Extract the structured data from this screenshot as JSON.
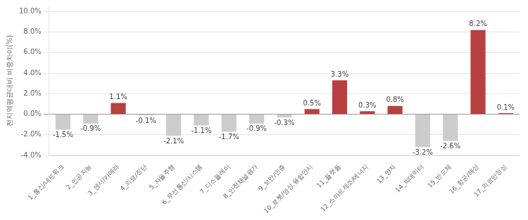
{
  "chart_data": {
    "type": "bar",
    "ylabel": "전지역평균대비 비중차이(%)",
    "categories": [
      "1_통신/네트워크",
      "2_인공지능",
      "3_센서/카메라",
      "4_의료/진단",
      "5_자율주행",
      "6_무선통신/시스템",
      "7_디스플레이",
      "8_안전채널평가",
      "9_보안/인증",
      "10_로봇/영상.융합안시",
      "11_플랫폼",
      "12_스마트제조/에너지",
      "13_양자",
      "14_빅데이터",
      "15_반도체",
      "16_항공/해상",
      "17_의료안정성"
    ],
    "values": [
      -1.5,
      -0.9,
      1.1,
      -0.1,
      -2.1,
      -1.1,
      -1.7,
      -0.9,
      -0.3,
      0.5,
      3.3,
      0.3,
      0.8,
      -3.2,
      -2.6,
      8.2,
      0.1
    ],
    "value_labels": [
      "-1.5%",
      "-0.9%",
      "1.1%",
      "-0.1%",
      "-2.1%",
      "-1.1%",
      "-1.7%",
      "-0.9%",
      "-0.3%",
      "0.5%",
      "3.3%",
      "0.3%",
      "0.8%",
      "-3.2%",
      "-2.6%",
      "8.2%",
      "0.1%"
    ],
    "colors": [
      "#cccccc",
      "#cccccc",
      "#b94040",
      "#cccccc",
      "#cccccc",
      "#cccccc",
      "#cccccc",
      "#cccccc",
      "#cccccc",
      "#b94040",
      "#b94040",
      "#b94040",
      "#b94040",
      "#cccccc",
      "#cccccc",
      "#b94040",
      "#b94040"
    ],
    "data_labels": true,
    "ylim": [
      -4.0,
      10.5
    ],
    "yticks": [
      {
        "value": -4.0,
        "label": "-4.0%"
      },
      {
        "value": -2.0,
        "label": "-2.0%"
      },
      {
        "value": 0.0,
        "label": "0.0%"
      },
      {
        "value": 2.0,
        "label": "2.0%"
      },
      {
        "value": 4.0,
        "label": "4.0%"
      },
      {
        "value": 6.0,
        "label": "6.0%"
      },
      {
        "value": 8.0,
        "label": "8.0%"
      },
      {
        "value": 10.0,
        "label": "10.0%"
      }
    ],
    "grid": true
  }
}
